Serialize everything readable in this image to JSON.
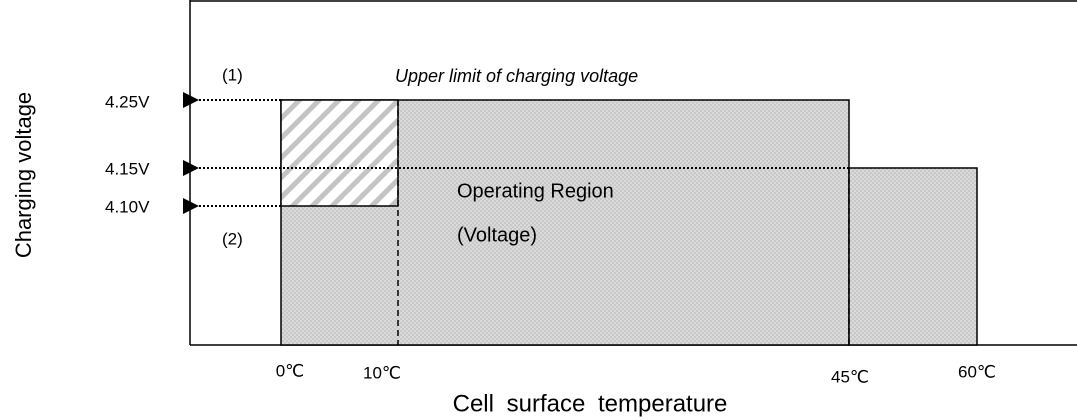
{
  "y_axis": {
    "label": "Charging voltage",
    "ticks": [
      "4.25V",
      "4.15V",
      "4.10V"
    ]
  },
  "x_axis": {
    "label": "Cell surface temperature",
    "ticks": [
      "0℃",
      "10℃",
      "45℃",
      "60℃"
    ]
  },
  "annotations": [
    "(1)",
    "(2)",
    "Upper limit of charging voltage"
  ],
  "region": {
    "label": "Operating Region",
    "sublabel": "(Voltage)"
  }
}
